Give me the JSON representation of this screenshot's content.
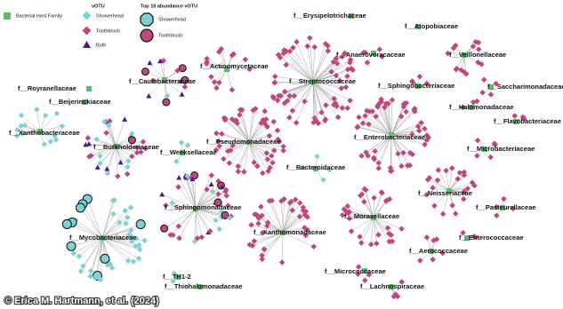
{
  "legend": {
    "host": "Bacterial Host Family",
    "votu_title": "vOTU",
    "showerhead": "Showerhead",
    "toothbrush": "Toothbrush",
    "both": "Both",
    "top_title": "Top 10 abundance vOTU",
    "top_showerhead": "Showerhead",
    "top_toothbrush": "Toothbrush"
  },
  "families": [
    "f__Erysipelotrichaceae",
    "f__Atopobiaceae",
    "f__Actinomycetaceae",
    "f__Anaerovoracaceae",
    "f__Veillonellaceae",
    "f__Caulobacteraceae",
    "f__Streptococcaceae",
    "f__Royranellaceae",
    "f__Sphingobacteriaceae",
    "f__Saccharimonadaceae",
    "f__Beijerinckiaceae",
    "f__Halomonadaceae",
    "f__Flavobacteriaceae",
    "f__Xanthobacteraceae",
    "f__Enterobacteriaceae",
    "f__Pseudomonadaceae",
    "f__Burkholderiaceae",
    "f__Microbacteriaceae",
    "f__Weeksellaceae",
    "f__Bacteroidaceae",
    "f__Neisseriaceae",
    "f__Sphingomonadaceae",
    "f__Pasteurellaceae",
    "f__Moraxellaceae",
    "f__Xanthomonadaceae",
    "f__Mycobacteriaceae",
    "f__Enterococcaceae",
    "f__Aerococcaceae",
    "f__TH1-2",
    "f__Micrococcaceae",
    "f__Thiohalomonadaceae",
    "f__Lachnospiraceae"
  ],
  "credit": "© Erica M. Hartmann, et al. (2024)"
}
